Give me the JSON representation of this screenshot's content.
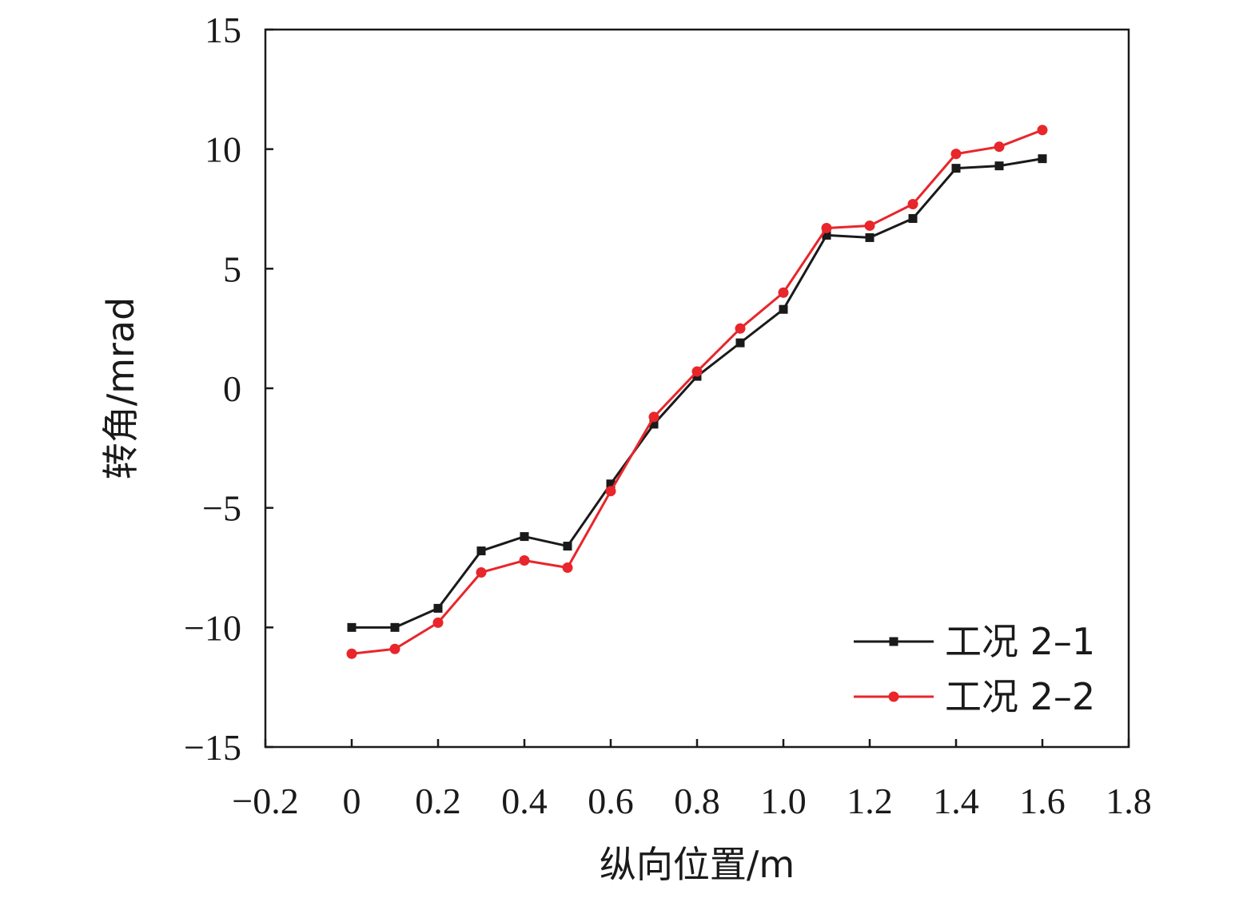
{
  "chart_data": {
    "type": "line",
    "xlabel": "纵向位置/m",
    "ylabel": "转角/mrad",
    "xlim": [
      -0.2,
      1.8
    ],
    "ylim": [
      -15,
      15
    ],
    "xticks": [
      -0.2,
      0,
      0.2,
      0.4,
      0.6,
      0.8,
      1.0,
      1.2,
      1.4,
      1.6,
      1.8
    ],
    "xtick_labels": [
      "−0.2",
      "0",
      "0.2",
      "0.4",
      "0.6",
      "0.8",
      "1.0",
      "1.2",
      "1.4",
      "1.6",
      "1.8"
    ],
    "yticks": [
      -15,
      -10,
      -5,
      0,
      5,
      10,
      15
    ],
    "ytick_labels": [
      "−15",
      "−10",
      "−5",
      "0",
      "5",
      "10",
      "15"
    ],
    "grid": false,
    "legend_position": "bottom-right",
    "x": [
      0,
      0.1,
      0.2,
      0.3,
      0.4,
      0.5,
      0.6,
      0.7,
      0.8,
      0.9,
      1.0,
      1.1,
      1.2,
      1.3,
      1.4,
      1.5,
      1.6
    ],
    "series": [
      {
        "name": "工况 2–1",
        "color": "#1a1a1a",
        "marker": "square",
        "values": [
          -10.0,
          -10.0,
          -9.2,
          -6.8,
          -6.2,
          -6.6,
          -4.0,
          -1.5,
          0.5,
          1.9,
          3.3,
          6.4,
          6.3,
          7.1,
          9.2,
          9.3,
          9.6
        ]
      },
      {
        "name": "工况 2–2",
        "color": "#e8262b",
        "marker": "circle",
        "values": [
          -11.1,
          -10.9,
          -9.8,
          -7.7,
          -7.2,
          -7.5,
          -4.3,
          -1.2,
          0.7,
          2.5,
          4.0,
          6.7,
          6.8,
          7.7,
          9.8,
          10.1,
          10.8
        ]
      }
    ]
  }
}
